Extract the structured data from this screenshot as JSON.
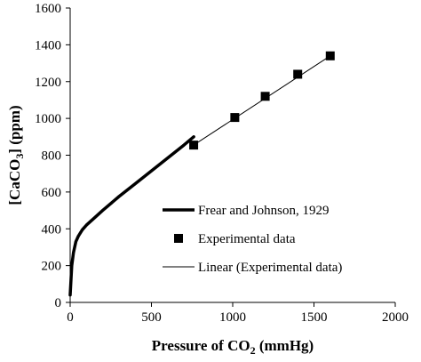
{
  "chart_data": {
    "type": "line",
    "xlabel": "Pressure of CO",
    "xlabel_sub": "2",
    "xlabel_unit": " (mmHg)",
    "ylabel": "[CaCO",
    "ylabel_sub": "3",
    "ylabel_unit": "] (ppm)",
    "xlim": [
      0,
      2000
    ],
    "ylim": [
      0,
      1600
    ],
    "xticks": [
      0,
      500,
      1000,
      1500,
      2000
    ],
    "yticks": [
      0,
      200,
      400,
      600,
      800,
      1000,
      1200,
      1400,
      1600
    ],
    "grid": false,
    "legend_position": "center-right",
    "series": [
      {
        "name": "Frear and Johnson, 1929",
        "style": "thick-line",
        "color": "#000000",
        "x": [
          0,
          5,
          10,
          20,
          35,
          50,
          75,
          100,
          150,
          200,
          300,
          400,
          500,
          600,
          700,
          760
        ],
        "y": [
          40,
          120,
          200,
          270,
          330,
          360,
          395,
          420,
          460,
          500,
          575,
          645,
          715,
          785,
          855,
          900
        ]
      },
      {
        "name": "Experimental data",
        "style": "markers",
        "marker": "square",
        "color": "#000000",
        "x": [
          760,
          1013,
          1200,
          1400,
          1600
        ],
        "y": [
          855,
          1005,
          1120,
          1240,
          1340
        ]
      },
      {
        "name": "Linear (Experimental data)",
        "style": "thin-line",
        "color": "#000000",
        "x": [
          760,
          1600
        ],
        "y": [
          855,
          1340
        ]
      }
    ]
  }
}
